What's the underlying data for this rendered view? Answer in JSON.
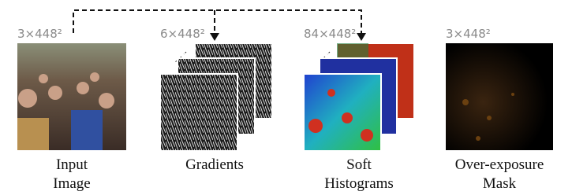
{
  "panels": [
    {
      "size": "3×448²",
      "caption": [
        "Input",
        "Image"
      ]
    },
    {
      "size": "6×448²",
      "caption": [
        "Gradients"
      ]
    },
    {
      "size": "84×448²",
      "caption": [
        "Soft",
        "Histograms"
      ]
    },
    {
      "size": "3×448²",
      "caption": [
        "Over-exposure",
        "Mask"
      ]
    }
  ]
}
